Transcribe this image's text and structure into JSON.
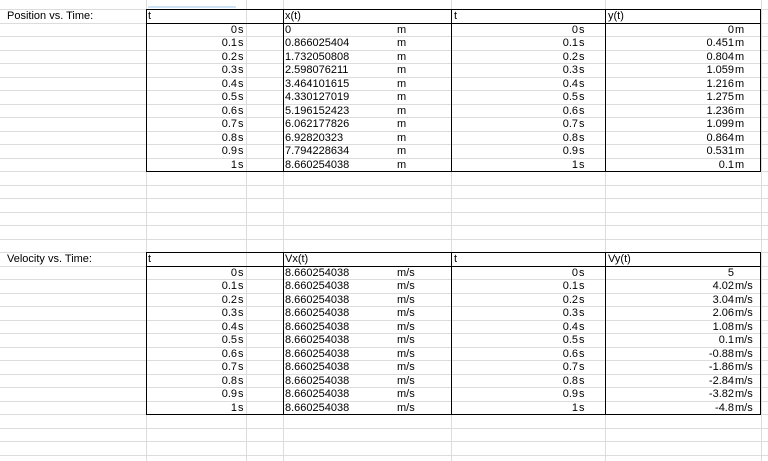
{
  "sections": [
    {
      "label": "Position vs. Time:",
      "headers": [
        "t",
        "x(t)",
        "t",
        "y(t)"
      ],
      "rows": [
        [
          "0",
          "s",
          "0",
          "m",
          "0",
          "s",
          "0",
          "m"
        ],
        [
          "0.1",
          "s",
          "0.866025404",
          "m",
          "0.1",
          "s",
          "0.451",
          "m"
        ],
        [
          "0.2",
          "s",
          "1.732050808",
          "m",
          "0.2",
          "s",
          "0.804",
          "m"
        ],
        [
          "0.3",
          "s",
          "2.598076211",
          "m",
          "0.3",
          "s",
          "1.059",
          "m"
        ],
        [
          "0.4",
          "s",
          "3.464101615",
          "m",
          "0.4",
          "s",
          "1.216",
          "m"
        ],
        [
          "0.5",
          "s",
          "4.330127019",
          "m",
          "0.5",
          "s",
          "1.275",
          "m"
        ],
        [
          "0.6",
          "s",
          "5.196152423",
          "m",
          "0.6",
          "s",
          "1.236",
          "m"
        ],
        [
          "0.7",
          "s",
          "6.062177826",
          "m",
          "0.7",
          "s",
          "1.099",
          "m"
        ],
        [
          "0.8",
          "s",
          "6.92820323",
          "m",
          "0.8",
          "s",
          "0.864",
          "m"
        ],
        [
          "0.9",
          "s",
          "7.794228634",
          "m",
          "0.9",
          "s",
          "0.531",
          "m"
        ],
        [
          "1",
          "s",
          "8.660254038",
          "m",
          "1",
          "s",
          "0.1",
          "m"
        ]
      ]
    },
    {
      "label": "Velocity vs. Time:",
      "headers": [
        "t",
        "Vx(t)",
        "t",
        "Vy(t)"
      ],
      "rows": [
        [
          "0",
          "s",
          "8.660254038",
          "m/s",
          "0",
          "s",
          "5",
          ""
        ],
        [
          "0.1",
          "s",
          "8.660254038",
          "m/s",
          "0.1",
          "s",
          "4.02",
          "m/s"
        ],
        [
          "0.2",
          "s",
          "8.660254038",
          "m/s",
          "0.2",
          "s",
          "3.04",
          "m/s"
        ],
        [
          "0.3",
          "s",
          "8.660254038",
          "m/s",
          "0.3",
          "s",
          "2.06",
          "m/s"
        ],
        [
          "0.4",
          "s",
          "8.660254038",
          "m/s",
          "0.4",
          "s",
          "1.08",
          "m/s"
        ],
        [
          "0.5",
          "s",
          "8.660254038",
          "m/s",
          "0.5",
          "s",
          "0.1",
          "m/s"
        ],
        [
          "0.6",
          "s",
          "8.660254038",
          "m/s",
          "0.6",
          "s",
          "-0.88",
          "m/s"
        ],
        [
          "0.7",
          "s",
          "8.660254038",
          "m/s",
          "0.7",
          "s",
          "-1.86",
          "m/s"
        ],
        [
          "0.8",
          "s",
          "8.660254038",
          "m/s",
          "0.8",
          "s",
          "-2.84",
          "m/s"
        ],
        [
          "0.9",
          "s",
          "8.660254038",
          "m/s",
          "0.9",
          "s",
          "-3.82",
          "m/s"
        ],
        [
          "1",
          "s",
          "8.660254038",
          "m/s",
          "1",
          "s",
          "-4.8",
          "m/s"
        ]
      ]
    }
  ]
}
